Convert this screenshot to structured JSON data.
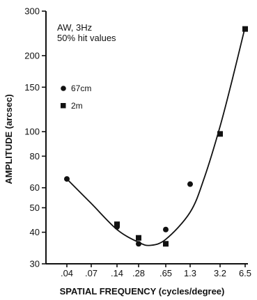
{
  "chart_data": {
    "type": "scatter",
    "title": "",
    "annotation_lines": [
      "AW,  3Hz",
      "50% hit values"
    ],
    "xlabel": "SPATIAL FREQUENCY (cycles/degree)",
    "ylabel": "AMPLITUDE (arcsec)",
    "x_scale": "log",
    "y_scale": "log",
    "xlim": [
      0.04,
      6.5
    ],
    "ylim": [
      30,
      300
    ],
    "x_ticks": [
      0.04,
      0.07,
      0.14,
      0.28,
      0.65,
      1.3,
      3.2,
      6.5
    ],
    "x_tick_labels": [
      ".04",
      ".07",
      ".14",
      ".28",
      ".65",
      "1.3",
      "3.2",
      "6.5"
    ],
    "y_ticks": [
      30,
      40,
      50,
      60,
      80,
      100,
      150,
      200,
      300
    ],
    "y_tick_labels": [
      "30",
      "40",
      "50",
      "60",
      "80",
      "100",
      "150",
      "200",
      "300"
    ],
    "legend_position": "left",
    "series": [
      {
        "name": "67cm",
        "marker": "circle",
        "points": [
          {
            "x": 0.04,
            "y": 65
          },
          {
            "x": 0.14,
            "y": 42
          },
          {
            "x": 0.28,
            "y": 36
          },
          {
            "x": 0.65,
            "y": 41
          },
          {
            "x": 1.3,
            "y": 62
          }
        ]
      },
      {
        "name": "2m",
        "marker": "square",
        "points": [
          {
            "x": 0.14,
            "y": 43
          },
          {
            "x": 0.28,
            "y": 38
          },
          {
            "x": 0.65,
            "y": 36
          },
          {
            "x": 3.2,
            "y": 98
          },
          {
            "x": 6.5,
            "y": 255
          }
        ]
      }
    ],
    "fit_curve": [
      {
        "x": 0.04,
        "y": 65
      },
      {
        "x": 0.07,
        "y": 52
      },
      {
        "x": 0.14,
        "y": 41
      },
      {
        "x": 0.28,
        "y": 36.5
      },
      {
        "x": 0.4,
        "y": 35.5
      },
      {
        "x": 0.65,
        "y": 37.5
      },
      {
        "x": 1.3,
        "y": 48
      },
      {
        "x": 2.0,
        "y": 66
      },
      {
        "x": 3.2,
        "y": 105
      },
      {
        "x": 4.5,
        "y": 160
      },
      {
        "x": 6.5,
        "y": 260
      }
    ],
    "colors": {
      "ink": "#111111",
      "background": "#ffffff"
    }
  }
}
